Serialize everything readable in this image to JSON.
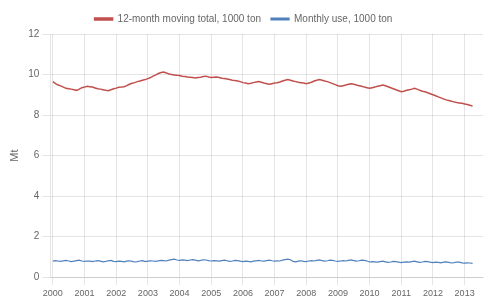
{
  "chart_data": {
    "type": "line",
    "ylabel": "Mt",
    "x": [
      2000,
      2000.0833333333,
      2000.1666666667,
      2000.25,
      2000.3333333333,
      2000.4166666667,
      2000.5,
      2000.5833333333,
      2000.6666666667,
      2000.75,
      2000.8333333333,
      2000.9166666667,
      2001,
      2001.0833333333,
      2001.1666666667,
      2001.25,
      2001.3333333333,
      2001.4166666667,
      2001.5,
      2001.5833333333,
      2001.6666666667,
      2001.75,
      2001.8333333333,
      2001.9166666667,
      2002,
      2002.0833333333,
      2002.1666666667,
      2002.25,
      2002.3333333333,
      2002.4166666667,
      2002.5,
      2002.5833333333,
      2002.6666666667,
      2002.75,
      2002.8333333333,
      2002.9166666667,
      2003,
      2003.0833333333,
      2003.1666666667,
      2003.25,
      2003.3333333333,
      2003.4166666667,
      2003.5,
      2003.5833333333,
      2003.6666666667,
      2003.75,
      2003.8333333333,
      2003.9166666667,
      2004,
      2004.0833333333,
      2004.1666666667,
      2004.25,
      2004.3333333333,
      2004.4166666667,
      2004.5,
      2004.5833333333,
      2004.6666666667,
      2004.75,
      2004.8333333333,
      2004.9166666667,
      2005,
      2005.0833333333,
      2005.1666666667,
      2005.25,
      2005.3333333333,
      2005.4166666667,
      2005.5,
      2005.5833333333,
      2005.6666666667,
      2005.75,
      2005.8333333333,
      2005.9166666667,
      2006,
      2006.0833333333,
      2006.1666666667,
      2006.25,
      2006.3333333333,
      2006.4166666667,
      2006.5,
      2006.5833333333,
      2006.6666666667,
      2006.75,
      2006.8333333333,
      2006.9166666667,
      2007,
      2007.0833333333,
      2007.1666666667,
      2007.25,
      2007.3333333333,
      2007.4166666667,
      2007.5,
      2007.5833333333,
      2007.6666666667,
      2007.75,
      2007.8333333333,
      2007.9166666667,
      2008,
      2008.0833333333,
      2008.1666666667,
      2008.25,
      2008.3333333333,
      2008.4166666667,
      2008.5,
      2008.5833333333,
      2008.6666666667,
      2008.75,
      2008.8333333333,
      2008.9166666667,
      2009,
      2009.0833333333,
      2009.1666666667,
      2009.25,
      2009.3333333333,
      2009.4166666667,
      2009.5,
      2009.5833333333,
      2009.6666666667,
      2009.75,
      2009.8333333333,
      2009.9166666667,
      2010,
      2010.0833333333,
      2010.1666666667,
      2010.25,
      2010.3333333333,
      2010.4166666667,
      2010.5,
      2010.5833333333,
      2010.6666666667,
      2010.75,
      2010.8333333333,
      2010.9166666667,
      2011,
      2011.0833333333,
      2011.1666666667,
      2011.25,
      2011.3333333333,
      2011.4166666667,
      2011.5,
      2011.5833333333,
      2011.6666666667,
      2011.75,
      2011.8333333333,
      2011.9166666667,
      2012,
      2012.0833333333,
      2012.1666666667,
      2012.25,
      2012.3333333333,
      2012.4166666667,
      2012.5,
      2012.5833333333,
      2012.6666666667,
      2012.75,
      2012.8333333333,
      2012.9166666667,
      2013,
      2013.0833333333,
      2013.1666666667,
      2013.25
    ],
    "series": [
      {
        "name": "12-month moving total, 1000 ton",
        "color": "#c0504d",
        "values": [
          9.65,
          9.55,
          9.48,
          9.44,
          9.38,
          9.32,
          9.3,
          9.28,
          9.25,
          9.22,
          9.28,
          9.35,
          9.38,
          9.42,
          9.4,
          9.38,
          9.34,
          9.3,
          9.28,
          9.25,
          9.22,
          9.2,
          9.25,
          9.3,
          9.33,
          9.37,
          9.38,
          9.4,
          9.45,
          9.52,
          9.57,
          9.6,
          9.65,
          9.68,
          9.72,
          9.75,
          9.8,
          9.85,
          9.92,
          9.98,
          10.05,
          10.1,
          10.12,
          10.08,
          10.03,
          10.0,
          9.98,
          9.96,
          9.95,
          9.92,
          9.9,
          9.88,
          9.87,
          9.85,
          9.83,
          9.85,
          9.87,
          9.9,
          9.92,
          9.88,
          9.85,
          9.87,
          9.88,
          9.85,
          9.82,
          9.8,
          9.78,
          9.75,
          9.72,
          9.7,
          9.68,
          9.65,
          9.6,
          9.58,
          9.55,
          9.57,
          9.6,
          9.63,
          9.65,
          9.62,
          9.58,
          9.55,
          9.52,
          9.55,
          9.58,
          9.6,
          9.63,
          9.68,
          9.72,
          9.75,
          9.72,
          9.68,
          9.65,
          9.62,
          9.6,
          9.58,
          9.55,
          9.58,
          9.62,
          9.68,
          9.72,
          9.75,
          9.72,
          9.68,
          9.65,
          9.6,
          9.55,
          9.5,
          9.45,
          9.42,
          9.45,
          9.48,
          9.52,
          9.55,
          9.52,
          9.48,
          9.45,
          9.42,
          9.38,
          9.35,
          9.32,
          9.35,
          9.38,
          9.42,
          9.45,
          9.48,
          9.45,
          9.4,
          9.35,
          9.3,
          9.25,
          9.2,
          9.15,
          9.18,
          9.22,
          9.25,
          9.28,
          9.32,
          9.28,
          9.22,
          9.18,
          9.15,
          9.1,
          9.05,
          9.0,
          8.95,
          8.9,
          8.85,
          8.8,
          8.75,
          8.72,
          8.68,
          8.65,
          8.62,
          8.6,
          8.58,
          8.55,
          8.52,
          8.48,
          8.45
        ]
      },
      {
        "name": "Monthly use, 1000 ton",
        "color": "#4f81bd",
        "values": [
          0.79,
          0.82,
          0.8,
          0.78,
          0.81,
          0.83,
          0.8,
          0.77,
          0.79,
          0.82,
          0.84,
          0.8,
          0.78,
          0.8,
          0.79,
          0.77,
          0.8,
          0.82,
          0.79,
          0.76,
          0.78,
          0.81,
          0.83,
          0.78,
          0.77,
          0.79,
          0.78,
          0.76,
          0.79,
          0.81,
          0.78,
          0.75,
          0.77,
          0.8,
          0.82,
          0.77,
          0.79,
          0.81,
          0.8,
          0.78,
          0.81,
          0.83,
          0.82,
          0.8,
          0.84,
          0.87,
          0.89,
          0.85,
          0.83,
          0.85,
          0.84,
          0.82,
          0.85,
          0.87,
          0.84,
          0.81,
          0.83,
          0.86,
          0.85,
          0.82,
          0.8,
          0.82,
          0.81,
          0.79,
          0.82,
          0.84,
          0.81,
          0.78,
          0.8,
          0.83,
          0.82,
          0.79,
          0.77,
          0.79,
          0.78,
          0.76,
          0.79,
          0.81,
          0.83,
          0.8,
          0.79,
          0.82,
          0.84,
          0.81,
          0.79,
          0.81,
          0.8,
          0.84,
          0.87,
          0.89,
          0.86,
          0.78,
          0.76,
          0.79,
          0.81,
          0.78,
          0.77,
          0.8,
          0.82,
          0.8,
          0.83,
          0.85,
          0.82,
          0.79,
          0.81,
          0.84,
          0.83,
          0.8,
          0.78,
          0.8,
          0.82,
          0.8,
          0.83,
          0.85,
          0.82,
          0.79,
          0.81,
          0.84,
          0.83,
          0.8,
          0.75,
          0.77,
          0.76,
          0.74,
          0.77,
          0.79,
          0.76,
          0.73,
          0.75,
          0.78,
          0.77,
          0.74,
          0.72,
          0.74,
          0.76,
          0.74,
          0.77,
          0.79,
          0.76,
          0.73,
          0.75,
          0.78,
          0.77,
          0.74,
          0.72,
          0.74,
          0.73,
          0.71,
          0.74,
          0.76,
          0.73,
          0.7,
          0.72,
          0.75,
          0.74,
          0.71,
          0.69,
          0.71,
          0.7,
          0.68
        ]
      }
    ],
    "xlim": [
      1999.92,
      2013.58
    ],
    "xticks": [
      2000,
      2001,
      2002,
      2003,
      2004,
      2005,
      2006,
      2007,
      2008,
      2009,
      2010,
      2011,
      2012,
      2013
    ],
    "ylim": [
      0,
      12
    ],
    "yticks": [
      0,
      2,
      4,
      6,
      8,
      10,
      12
    ],
    "grid": true,
    "legend": "top"
  }
}
